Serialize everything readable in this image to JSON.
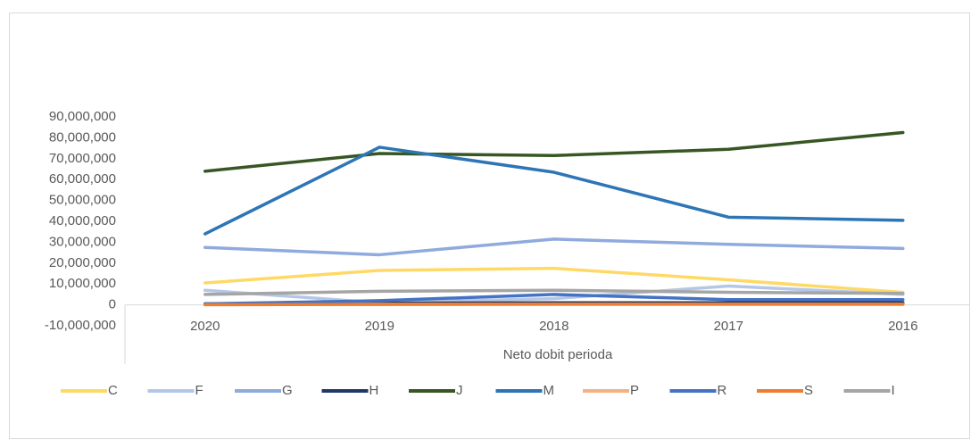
{
  "chart_data": {
    "type": "line",
    "x_label": "Neto dobit perioda",
    "categories": [
      "2020",
      "2019",
      "2018",
      "2017",
      "2016"
    ],
    "ylim": [
      -10000000,
      90000000
    ],
    "yticks": [
      {
        "value": -10000000,
        "label": "-10,000,000"
      },
      0,
      {
        "value": 10000000,
        "label": "10,000,000"
      },
      {
        "value": 20000000,
        "label": "20,000,000"
      },
      {
        "value": 30000000,
        "label": "30,000,000"
      },
      {
        "value": 40000000,
        "label": "40,000,000"
      },
      {
        "value": 50000000,
        "label": "50,000,000"
      },
      {
        "value": 60000000,
        "label": "60,000,000"
      },
      {
        "value": 70000000,
        "label": "70,000,000"
      },
      {
        "value": 80000000,
        "label": "80,000,000"
      },
      {
        "value": 90000000,
        "label": "90,000,000"
      }
    ],
    "grid": false,
    "legend": "bottom",
    "series": [
      {
        "name": "C",
        "color": "#ffd966",
        "values": [
          10500000,
          16500000,
          17500000,
          12000000,
          6000000
        ]
      },
      {
        "name": "F",
        "color": "#b4c7e7",
        "values": [
          7000000,
          1000000,
          3000000,
          9000000,
          5000000
        ]
      },
      {
        "name": "G",
        "color": "#8faadc",
        "values": [
          27500000,
          24000000,
          31500000,
          29000000,
          27000000
        ]
      },
      {
        "name": "H",
        "color": "#203864",
        "values": [
          500000,
          800000,
          1000000,
          1000000,
          1000000
        ]
      },
      {
        "name": "J",
        "color": "#375623",
        "values": [
          64000000,
          72500000,
          71500000,
          74500000,
          82500000
        ]
      },
      {
        "name": "M",
        "color": "#2e75b6",
        "values": [
          34000000,
          75500000,
          63500000,
          42000000,
          40500000
        ]
      },
      {
        "name": "P",
        "color": "#f4b183",
        "values": [
          200000,
          300000,
          300000,
          300000,
          300000
        ]
      },
      {
        "name": "R",
        "color": "#4472c4",
        "values": [
          500000,
          2000000,
          5000000,
          2500000,
          2500000
        ]
      },
      {
        "name": "S",
        "color": "#ed7d31",
        "values": [
          100000,
          200000,
          300000,
          300000,
          300000
        ]
      },
      {
        "name": "I",
        "color": "#a5a5a5",
        "values": [
          5000000,
          6500000,
          7000000,
          6000000,
          5500000
        ]
      }
    ]
  }
}
